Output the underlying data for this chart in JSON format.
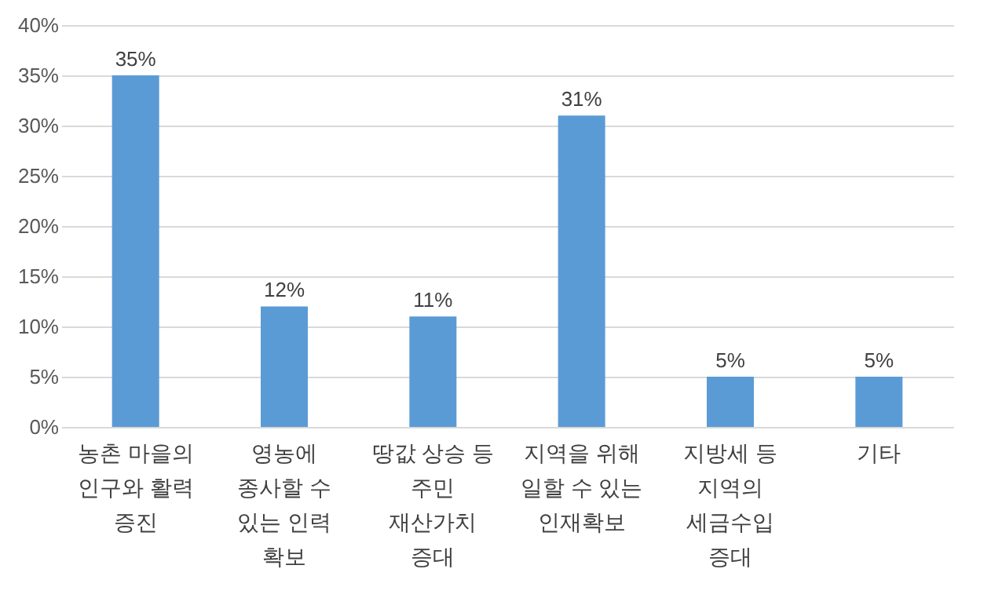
{
  "chart_data": {
    "type": "bar",
    "categories": [
      "농촌 마을의\n인구와 활력\n증진",
      "영농에\n종사할 수\n있는 인력\n확보",
      "땅값 상승 등\n주민\n재산가치\n증대",
      "지역을 위해\n일할 수 있는\n인재확보",
      "지방세 등\n지역의\n세금수입\n증대",
      "기타"
    ],
    "values": [
      35,
      12,
      11,
      31,
      5,
      5
    ],
    "color": "#5b9bd5",
    "ylim": [
      0,
      40
    ],
    "yticks": [
      {
        "value": 0,
        "label": "0%"
      },
      {
        "value": 5,
        "label": "5%"
      },
      {
        "value": 10,
        "label": "10%"
      },
      {
        "value": 15,
        "label": "15%"
      },
      {
        "value": 20,
        "label": "20%"
      },
      {
        "value": 25,
        "label": "25%"
      },
      {
        "value": 30,
        "label": "30%"
      },
      {
        "value": 35,
        "label": "35%"
      },
      {
        "value": 40,
        "label": "40%"
      }
    ],
    "grid": "y",
    "value_labels": [
      "35%",
      "12%",
      "11%",
      "31%",
      "5%",
      "5%"
    ]
  }
}
